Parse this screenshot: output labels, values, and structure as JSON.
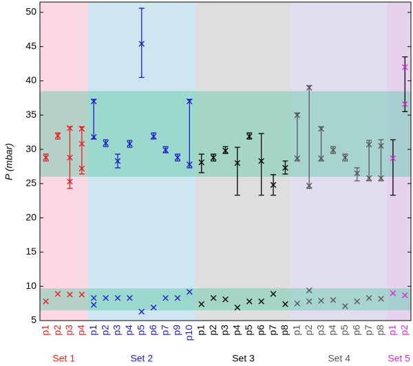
{
  "chart_data": {
    "type": "errorbar",
    "ylabel": "P (mbar)",
    "ylim": [
      5,
      51.5
    ],
    "yticks": [
      5,
      10,
      15,
      20,
      25,
      30,
      35,
      40,
      45,
      50
    ],
    "bands": [
      [
        26,
        38.5
      ],
      [
        6.5,
        9.7
      ]
    ],
    "band_color": "#5fc9a8",
    "groups": [
      {
        "name": "Set 1",
        "color": "#e0201c",
        "err_color": "#e0201c",
        "bg": "#fcd8e4",
        "points": [
          {
            "label": "p1",
            "markers": [
              28.8
            ],
            "low": [
              7.8
            ],
            "err": [
              28.3,
              29.3
            ]
          },
          {
            "label": "p2",
            "markers": [
              32
            ],
            "low": [
              8.9
            ],
            "err": [
              31.5,
              32.4
            ]
          },
          {
            "label": "p3",
            "markers": [
              33.1,
              28.8,
              25.3
            ],
            "low": [
              8.8
            ],
            "err": [
              24.3,
              33.3
            ]
          },
          {
            "label": "p4",
            "markers": [
              33,
              30.8,
              27.2
            ],
            "low": [
              8.8
            ],
            "err": [
              26.4,
              33.3
            ]
          }
        ]
      },
      {
        "name": "Set 2",
        "color": "#1a1ac8",
        "err_color": "#1a1ac8",
        "bg": "#cde6ef",
        "points": [
          {
            "label": "p1",
            "markers": [
              37,
              31.8
            ],
            "low": [
              8.3,
              7.3
            ],
            "err": [
              31.5,
              37.3
            ]
          },
          {
            "label": "p2",
            "markers": [
              30.9
            ],
            "low": [
              8.3
            ],
            "err": [
              30.4,
              31.4
            ]
          },
          {
            "label": "p3",
            "markers": [
              28.3
            ],
            "low": [
              8.3
            ],
            "err": [
              27.3,
              29.3
            ]
          },
          {
            "label": "p4",
            "markers": [
              30.8
            ],
            "low": [
              8.3
            ],
            "err": [
              30.3,
              31.3
            ]
          },
          {
            "label": "p5",
            "markers": [
              45.4
            ],
            "low": [
              6.3
            ],
            "err": [
              40.5,
              50.6
            ]
          },
          {
            "label": "p6",
            "markers": [
              31.9
            ],
            "low": [
              6.9
            ],
            "err": [
              31.5,
              32.4
            ]
          },
          {
            "label": "p7",
            "markers": [
              29.9
            ],
            "low": [
              8.3
            ],
            "err": [
              29.5,
              30.4
            ]
          },
          {
            "label": "p9",
            "markers": [
              28.8
            ],
            "low": [
              8.3
            ],
            "err": [
              28.3,
              29.3
            ]
          },
          {
            "label": "p10",
            "markers": [
              37,
              27.8
            ],
            "low": [
              9.2
            ],
            "err": [
              27.3,
              37.3
            ]
          }
        ]
      },
      {
        "name": "Set 3",
        "color": "#000000",
        "err_color": "#000000",
        "bg": "#dedede",
        "points": [
          {
            "label": "p1",
            "markers": [
              28.1
            ],
            "low": [
              7.4
            ],
            "err": [
              26.6,
              29.3
            ]
          },
          {
            "label": "p2",
            "markers": [
              28.8
            ],
            "low": [
              8.3
            ],
            "err": [
              28.3,
              29.3
            ]
          },
          {
            "label": "p3",
            "markers": [
              29.8
            ],
            "low": [
              8.1
            ],
            "err": [
              29.4,
              30.4
            ]
          },
          {
            "label": "p4",
            "markers": [
              28
            ],
            "low": [
              6.9
            ],
            "err": [
              23.3,
              30.3
            ]
          },
          {
            "label": "p5",
            "markers": [
              31.9
            ],
            "low": [
              7.8
            ],
            "err": [
              31.5,
              32.4
            ]
          },
          {
            "label": "p6",
            "markers": [
              28.3
            ],
            "low": [
              7.8
            ],
            "err": [
              23.3,
              32.3
            ]
          },
          {
            "label": "p7",
            "markers": [
              24.8
            ],
            "low": [
              8.9
            ],
            "err": [
              23.3,
              26.3
            ]
          },
          {
            "label": "p8",
            "markers": [
              27.3
            ],
            "low": [
              7.4
            ],
            "err": [
              26.4,
              28.3
            ]
          }
        ]
      },
      {
        "name": "Set 4",
        "color": "#555555",
        "err_color": "#555555",
        "bg": "#e2ddee",
        "points": [
          {
            "label": "p1",
            "markers": [
              35,
              28.7
            ],
            "low": [
              7.5
            ],
            "err": [
              28.3,
              35.3
            ]
          },
          {
            "label": "p2",
            "markers": [
              39,
              24.7
            ],
            "low": [
              9.4,
              7.8
            ],
            "err": [
              24.3,
              39.3
            ]
          },
          {
            "label": "p3",
            "markers": [
              33,
              28.7
            ],
            "low": [
              7.9
            ],
            "err": [
              28.3,
              33.3
            ]
          },
          {
            "label": "p4",
            "markers": [
              29.9
            ],
            "low": [
              8
            ],
            "err": [
              29.4,
              30.4
            ]
          },
          {
            "label": "p5",
            "markers": [
              28.8
            ],
            "low": [
              7.1
            ],
            "err": [
              28.3,
              29.3
            ]
          },
          {
            "label": "p6",
            "markers": [
              26.5
            ],
            "low": [
              7.8
            ],
            "err": [
              25.4,
              27.3
            ]
          },
          {
            "label": "p7",
            "markers": [
              30.7,
              25.8
            ],
            "low": [
              8.3
            ],
            "err": [
              25.4,
              31.3
            ]
          },
          {
            "label": "p8",
            "markers": [
              30.5,
              25.8
            ],
            "low": [
              8.2
            ],
            "err": [
              25.4,
              31.4
            ]
          }
        ]
      },
      {
        "name": "Set 5",
        "color": "#d62ad6",
        "err_color": "#000000",
        "bg": "#e6d2ee",
        "points": [
          {
            "label": "p1",
            "markers": [
              28.7
            ],
            "low": [
              9
            ],
            "err": [
              23.3,
              31.4
            ]
          },
          {
            "label": "p2",
            "markers": [
              42,
              36.6
            ],
            "low": [
              8.7
            ],
            "err": [
              35.5,
              43.5
            ]
          }
        ]
      }
    ]
  }
}
